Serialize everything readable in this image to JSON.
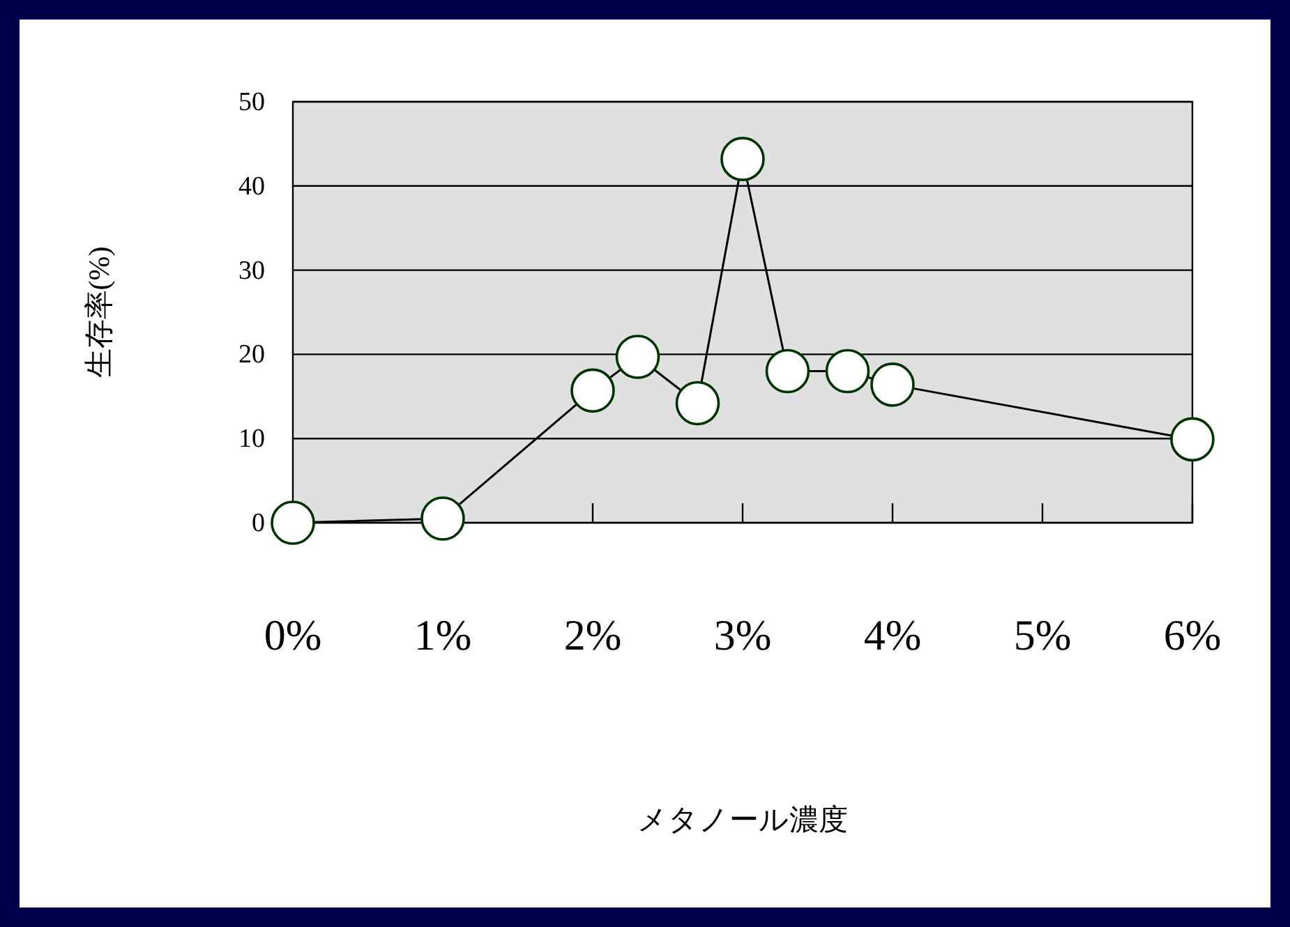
{
  "chart_data": {
    "type": "line",
    "xlabel": "メタノール濃度",
    "ylabel": "生存率(%)",
    "xlim": [
      0,
      6
    ],
    "ylim": [
      0,
      50
    ],
    "xticks": [
      {
        "value": 0,
        "label": "0%"
      },
      {
        "value": 1,
        "label": "1%"
      },
      {
        "value": 2,
        "label": "2%"
      },
      {
        "value": 3,
        "label": "3%"
      },
      {
        "value": 4,
        "label": "4%"
      },
      {
        "value": 5,
        "label": "5%"
      },
      {
        "value": 6,
        "label": "6%"
      }
    ],
    "yticks": [
      0,
      10,
      20,
      30,
      40,
      50
    ],
    "grid": "y",
    "marker": "circle",
    "line_style": "solid",
    "series": [
      {
        "color": "#000000",
        "x": [
          0,
          1,
          2,
          2.3,
          2.7,
          3,
          3.3,
          3.7,
          4,
          6
        ],
        "values": [
          0,
          0.5,
          15.7,
          19.7,
          14.2,
          43.2,
          18,
          18,
          16.4,
          9.9
        ]
      }
    ]
  }
}
